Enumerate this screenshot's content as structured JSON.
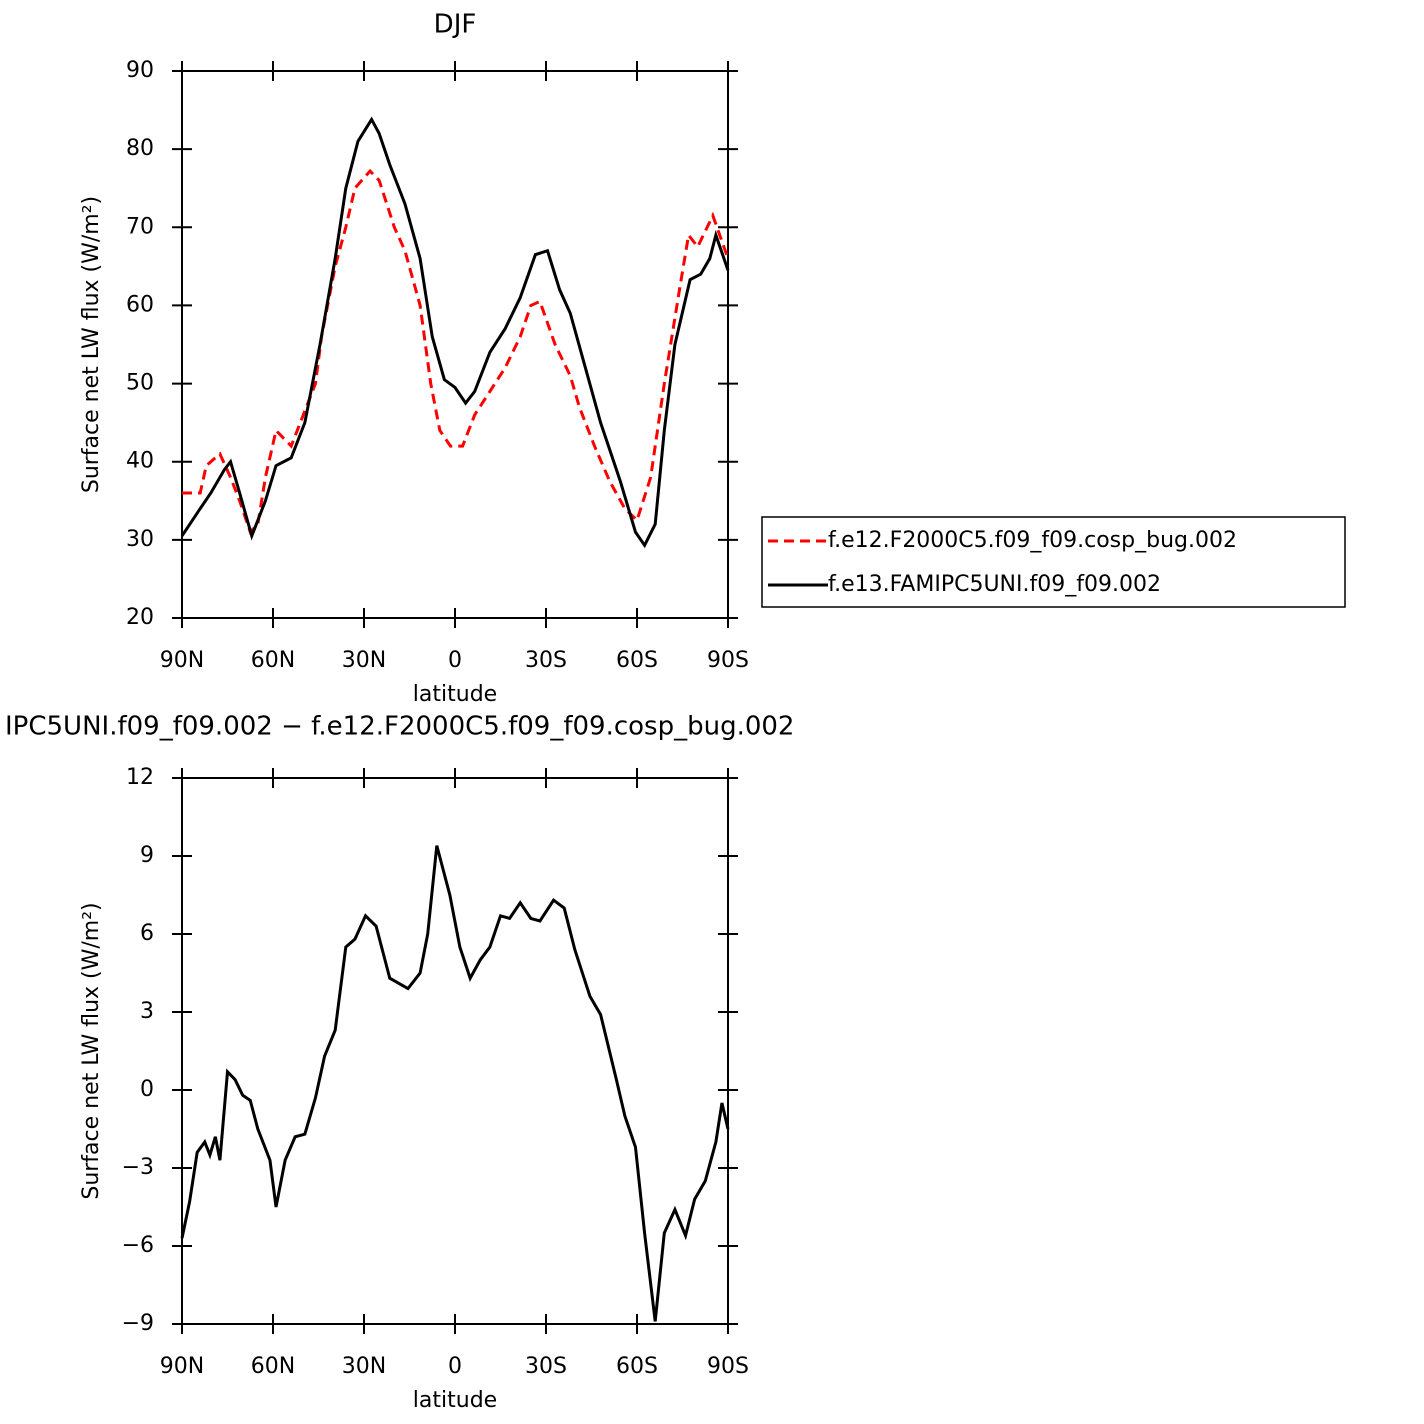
{
  "chart_data": [
    {
      "type": "line",
      "title": "DJF",
      "xlabel": "latitude",
      "ylabel": "Surface net LW flux (W/m²)",
      "xlim": [
        90,
        -90
      ],
      "xticks": [
        {
          "value": 90,
          "label": "90N"
        },
        {
          "value": 60,
          "label": "60N"
        },
        {
          "value": 30,
          "label": "30N"
        },
        0,
        {
          "value": -30,
          "label": "30S"
        },
        {
          "value": -60,
          "label": "60S"
        },
        {
          "value": -90,
          "label": "90S"
        }
      ],
      "ylim": [
        20,
        90
      ],
      "yticks": [
        20,
        30,
        40,
        50,
        60,
        70,
        80,
        90
      ],
      "legend": "right",
      "series": [
        {
          "name": "f.e12.F2000C5.f09_f09.cosp_bug.002",
          "color": "#ff0000",
          "dash": "dashed",
          "x": [
            90,
            84,
            82,
            77.5,
            74,
            71,
            67.5,
            65,
            62.5,
            59,
            54,
            50,
            46,
            44,
            39.5,
            36,
            33,
            28,
            25,
            20,
            16.5,
            11.5,
            8,
            5,
            1.5,
            -2.5,
            -6.5,
            -11.5,
            -16.5,
            -21.5,
            -25,
            -28,
            -33,
            -38,
            -41,
            -46,
            -51,
            -56,
            -60,
            -64.5,
            -69,
            -74,
            -77,
            -80,
            -85,
            -90
          ],
          "values": [
            36,
            36,
            39.5,
            41,
            38,
            35,
            31,
            32,
            38,
            44,
            42,
            46,
            50,
            56,
            65,
            70,
            75,
            77.2,
            76,
            70,
            67,
            60,
            50,
            44,
            42,
            42,
            46,
            49,
            52,
            56,
            60,
            60.5,
            55,
            51,
            47,
            42,
            37.5,
            34,
            32.5,
            38,
            50,
            62,
            69,
            67.5,
            71.5,
            66
          ]
        },
        {
          "name": "f.e13.FAMIPC5UNI.f09_f09.002",
          "color": "#000000",
          "dash": "solid",
          "x": [
            90,
            84,
            80.5,
            76,
            74,
            71,
            67,
            62.5,
            59,
            54,
            49.5,
            44.5,
            39.5,
            36,
            32,
            27.5,
            25,
            21.5,
            16.5,
            11.5,
            7.5,
            3.5,
            0,
            -3.5,
            -6.5,
            -11.5,
            -16.5,
            -21.5,
            -26.5,
            -30.5,
            -34.5,
            -38,
            -43,
            -48,
            -54.5,
            -59.5,
            -62.5,
            -66,
            -69,
            -72.5,
            -77.5,
            -81,
            -84,
            -86,
            -90
          ],
          "values": [
            30.5,
            34,
            36,
            39,
            40,
            36,
            30.5,
            35,
            39.5,
            40.5,
            45,
            55,
            66,
            75,
            81,
            83.8,
            82,
            78,
            73,
            66,
            56,
            50.5,
            49.5,
            47.5,
            49,
            54,
            57,
            61,
            66.5,
            67,
            62,
            59,
            52,
            45,
            37.5,
            31,
            29.3,
            32,
            44,
            55,
            63.3,
            64,
            66,
            69,
            64.5
          ]
        }
      ]
    },
    {
      "type": "line",
      "title": "IPC5UNI.f09_f09.002 − f.e12.F2000C5.f09_f09.cosp_bug.002",
      "xlabel": "latitude",
      "ylabel": "Surface net LW flux (W/m²)",
      "xlim": [
        90,
        -90
      ],
      "xticks": [
        {
          "value": 90,
          "label": "90N"
        },
        {
          "value": 60,
          "label": "60N"
        },
        {
          "value": 30,
          "label": "30N"
        },
        0,
        {
          "value": -30,
          "label": "30S"
        },
        {
          "value": -60,
          "label": "60S"
        },
        {
          "value": -90,
          "label": "90S"
        }
      ],
      "ylim": [
        -9,
        12
      ],
      "yticks": [
        {
          "value": -9,
          "label": "−9"
        },
        {
          "value": -6,
          "label": "−6"
        },
        {
          "value": -3,
          "label": "−3"
        },
        0,
        3,
        6,
        9,
        12
      ],
      "series": [
        {
          "color": "#000000",
          "dash": "solid",
          "x": [
            90,
            87.5,
            85,
            82.5,
            80.8,
            79,
            77.5,
            75,
            72.5,
            70,
            67.5,
            65,
            61,
            59,
            56,
            52.7,
            49.5,
            46,
            43,
            39.5,
            36,
            33,
            29.5,
            26,
            21.5,
            15.5,
            11.5,
            9,
            6,
            1.7,
            -1.6,
            -5,
            -8.3,
            -11.5,
            -15,
            -18,
            -21.5,
            -25,
            -28,
            -32.5,
            -36,
            -39.5,
            -44.5,
            -48,
            -53,
            -56,
            -59.5,
            -62.5,
            -66,
            -69,
            -72.5,
            -76,
            -79,
            -82.5,
            -86,
            -88,
            -90
          ],
          "values": [
            -5.7,
            -4.3,
            -2.4,
            -2,
            -2.5,
            -1.8,
            -2.7,
            0.7,
            0.4,
            -0.2,
            -0.4,
            -1.5,
            -2.7,
            -4.5,
            -2.7,
            -1.8,
            -1.7,
            -0.3,
            1.3,
            2.3,
            5.5,
            5.8,
            6.7,
            6.3,
            4.3,
            3.9,
            4.5,
            6,
            9.4,
            7.5,
            5.5,
            4.3,
            5,
            5.5,
            6.7,
            6.6,
            7.2,
            6.6,
            6.5,
            7.3,
            7,
            5.4,
            3.6,
            2.9,
            0.5,
            -1,
            -2.2,
            -5.5,
            -8.9,
            -5.5,
            -4.6,
            -5.6,
            -4.2,
            -3.5,
            -2,
            -0.5,
            -1.5
          ]
        }
      ]
    }
  ]
}
